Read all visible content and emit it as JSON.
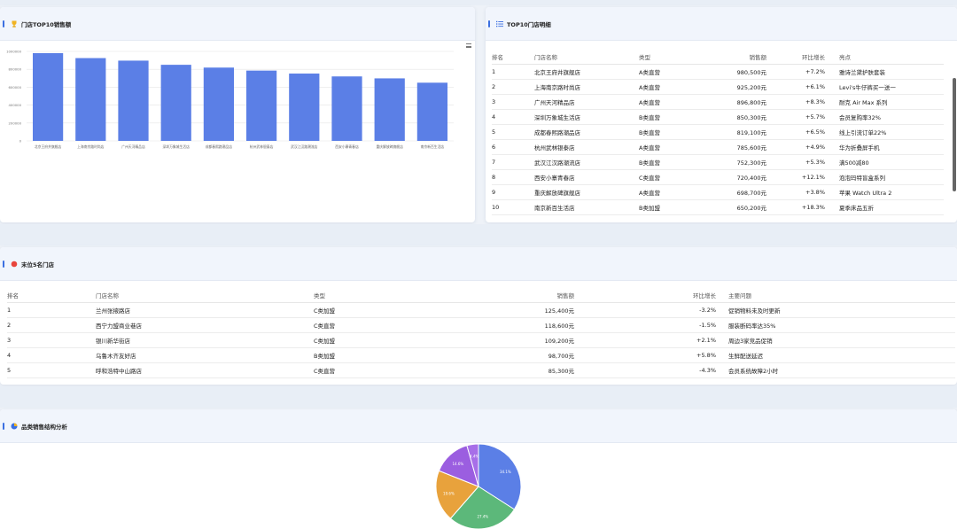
{
  "top_bar_card": {
    "title": "门店TOP10销售额",
    "icon": "trophy-icon",
    "chart_data": {
      "type": "bar",
      "title": "",
      "categories": [
        "北京王府井旗舰店",
        "上海南京路时尚店",
        "广州天河精品店",
        "深圳万象城生活店",
        "成都春熙路潮品店",
        "杭州武林银泰店",
        "武汉江汉路潮流店",
        "西安小寨青春店",
        "重庆解放碑旗舰店",
        "南京新百生活店"
      ],
      "values": [
        980500,
        925200,
        896800,
        850300,
        819100,
        785600,
        752300,
        720400,
        698700,
        650200
      ],
      "ylim": [
        0,
        1000000
      ],
      "yticks": [
        "0",
        "200000",
        "400000",
        "600000",
        "800000",
        "1000000"
      ],
      "grid": true,
      "bar_color": "#5b7fe6"
    }
  },
  "detail_card": {
    "title": "TOP10门店明细",
    "icon": "list-icon",
    "columns": [
      "排名",
      "门店名称",
      "类型",
      "销售额",
      "环比增长",
      "亮点"
    ],
    "rows": [
      [
        "1",
        "北京王府井旗舰店",
        "A类直营",
        "980,500元",
        "+7.2%",
        "雅诗兰黛护肤套装"
      ],
      [
        "2",
        "上海南京路时尚店",
        "A类直营",
        "925,200元",
        "+6.1%",
        "Levi's牛仔裤买一送一"
      ],
      [
        "3",
        "广州天河精品店",
        "A类直营",
        "896,800元",
        "+8.3%",
        "耐克 Air Max 系列"
      ],
      [
        "4",
        "深圳万象城生活店",
        "B类直营",
        "850,300元",
        "+5.7%",
        "会员复购率32%"
      ],
      [
        "5",
        "成都春熙路潮品店",
        "B类直营",
        "819,100元",
        "+6.5%",
        "线上引流订单22%"
      ],
      [
        "6",
        "杭州武林银泰店",
        "A类直营",
        "785,600元",
        "+4.9%",
        "华为折叠屏手机"
      ],
      [
        "7",
        "武汉江汉路潮流店",
        "B类直营",
        "752,300元",
        "+5.3%",
        "满500减80"
      ],
      [
        "8",
        "西安小寨青春店",
        "C类直营",
        "720,400元",
        "+12.1%",
        "泡泡玛特盲盒系列"
      ],
      [
        "9",
        "重庆解放碑旗舰店",
        "A类直营",
        "698,700元",
        "+3.8%",
        "苹果 Watch Ultra 2"
      ],
      [
        "10",
        "南京新百生活店",
        "B类加盟",
        "650,200元",
        "+18.3%",
        "夏季床品五折"
      ]
    ]
  },
  "bottom_card": {
    "title": "末位5名门店",
    "icon": "red-dot-icon",
    "columns": [
      "排名",
      "门店名称",
      "类型",
      "销售额",
      "环比增长",
      "主要问题"
    ],
    "rows": [
      [
        "1",
        "兰州张掖路店",
        "C类加盟",
        "125,400元",
        "-3.2%",
        "促销物料未及时更新"
      ],
      [
        "2",
        "西宁力盟商业巷店",
        "C类直营",
        "118,600元",
        "-1.5%",
        "服装断码率达35%"
      ],
      [
        "3",
        "银川新华街店",
        "C类加盟",
        "109,200元",
        "+2.1%",
        "周边3家竞品促销"
      ],
      [
        "4",
        "乌鲁木齐友好店",
        "B类加盟",
        "98,700元",
        "+5.8%",
        "生鲜配送延迟"
      ],
      [
        "5",
        "呼和浩特中山路店",
        "C类直营",
        "85,300元",
        "-4.3%",
        "会员系统故障2小时"
      ]
    ]
  },
  "pie_card": {
    "title": "品类销售结构分析",
    "icon": "pie-chart-icon",
    "chart_data": {
      "type": "pie",
      "title": "",
      "slices": [
        {
          "label": "34.1%",
          "value": 34.1,
          "color": "#5b7fe6"
        },
        {
          "label": "27.4%",
          "value": 27.4,
          "color": "#5cb87a"
        },
        {
          "label": "19.6%",
          "value": 19.6,
          "color": "#e8a23c"
        },
        {
          "label": "14.6%",
          "value": 14.6,
          "color": "#9b5ee0"
        },
        {
          "label": "4.4%",
          "value": 4.4,
          "color": "#a76fe8"
        }
      ]
    }
  }
}
